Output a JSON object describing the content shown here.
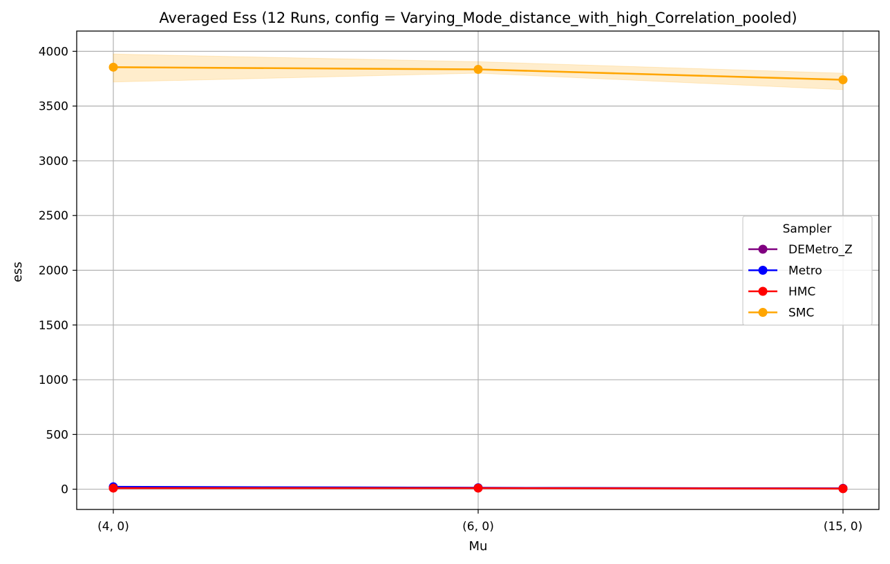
{
  "chart_data": {
    "type": "line",
    "title": "Averaged Ess (12 Runs, config = Varying_Mode_distance_with_high_Correlation_pooled)",
    "xlabel": "Mu",
    "ylabel": "ess",
    "categories": [
      "(4, 0)",
      "(6, 0)",
      "(15, 0)"
    ],
    "ylim": [
      -185,
      4185
    ],
    "yticks": [
      0,
      500,
      1000,
      1500,
      2000,
      2500,
      3000,
      3500,
      4000
    ],
    "grid": true,
    "legend": {
      "title": "Sampler",
      "position": "center-right"
    },
    "series": [
      {
        "name": "DEMetro_Z",
        "color": "#800080",
        "values": [
          15,
          12,
          8
        ],
        "lower": [
          15,
          12,
          8
        ],
        "upper": [
          15,
          12,
          8
        ]
      },
      {
        "name": "Metro",
        "color": "#0000ff",
        "values": [
          22,
          13,
          6
        ],
        "lower": [
          22,
          13,
          6
        ],
        "upper": [
          22,
          13,
          6
        ]
      },
      {
        "name": "HMC",
        "color": "#ff0000",
        "values": [
          10,
          10,
          5
        ],
        "lower": [
          10,
          10,
          5
        ],
        "upper": [
          10,
          10,
          5
        ]
      },
      {
        "name": "SMC",
        "color": "#ffa500",
        "values": [
          3855,
          3835,
          3740
        ],
        "lower": [
          3720,
          3800,
          3650
        ],
        "upper": [
          3975,
          3905,
          3800
        ]
      }
    ]
  }
}
